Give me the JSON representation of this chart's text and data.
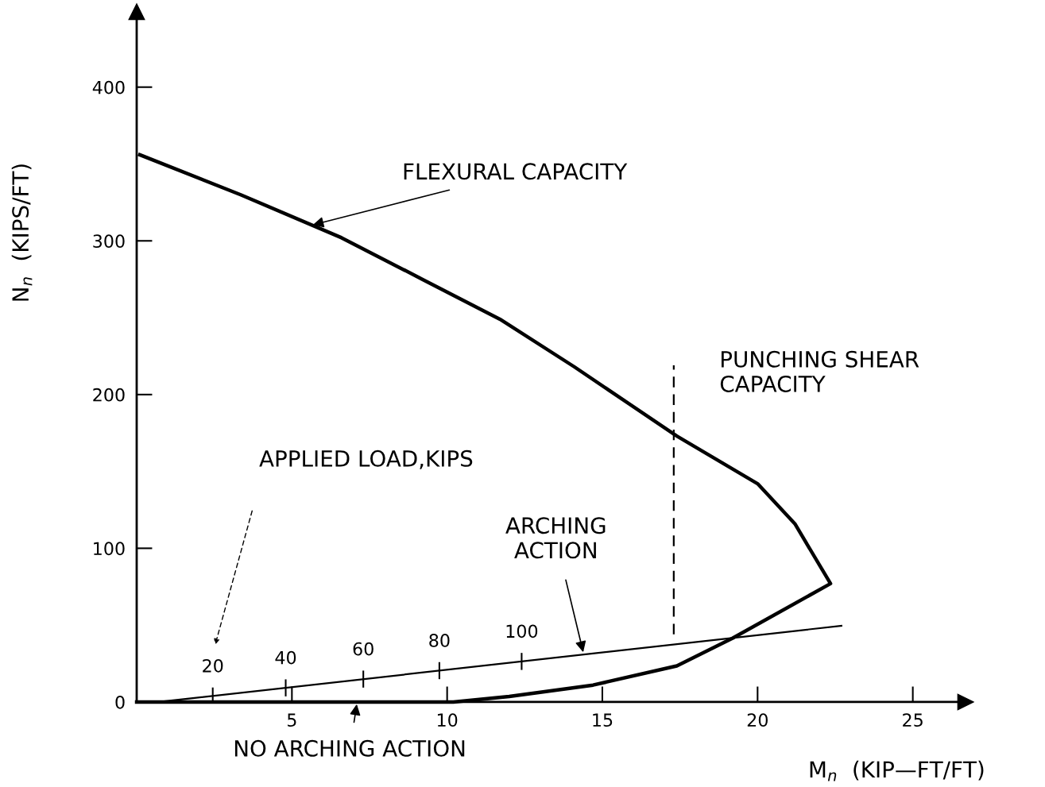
{
  "chart_data": {
    "type": "line",
    "xlabel": "M$_{n}$  (KIP—FT/FT)",
    "ylabel": "N$_{n}$  (KIPS/FT)",
    "xlim": [
      0,
      26.7
    ],
    "ylim": [
      0,
      449
    ],
    "xticks": [
      5,
      10,
      15,
      20,
      25
    ],
    "yticks": [
      0,
      100,
      200,
      300,
      400
    ],
    "grid": false,
    "legend": false,
    "marker": "none",
    "series": [
      {
        "color": "#000000",
        "line_style": "solid",
        "x": [
          0.1,
          3.35,
          6.6,
          9.2,
          11.7,
          14.1,
          17.4,
          20,
          21.2,
          22.35,
          19.2,
          17.4,
          14.7,
          12,
          10.2,
          0
        ],
        "values": [
          356,
          330,
          302,
          275,
          249,
          218,
          173,
          142,
          116,
          77,
          41.6,
          23.5,
          11,
          3.6,
          0,
          0
        ]
      },
      {
        "color": "#000000",
        "line_style": "solid",
        "x": [
          0.7,
          22.7
        ],
        "values": [
          0,
          49.6
        ]
      },
      {
        "color": "#000000",
        "line_style": "dashed",
        "x": [
          17.3,
          17.3
        ],
        "values": [
          44,
          219
        ]
      }
    ],
    "annotations": [
      {
        "text": "FLEXURAL CAPACITY",
        "x": 5.6,
        "y": 310
      },
      "PUNCHING SHEAR\nCAPACITY",
      "APPLIED LOAD,KIPS",
      {
        "text": "ARCHING\nACTION",
        "x": 14.4,
        "y": 31
      },
      {
        "text": "NO ARCHING ACTION",
        "x": 7.1,
        "y": 0
      },
      {
        "text": "20",
        "x": 2.45,
        "y": 3.9
      },
      {
        "text": "40",
        "x": 4.8,
        "y": 9.2
      },
      {
        "text": "60",
        "x": 7.3,
        "y": 14.9
      },
      {
        "text": "80",
        "x": 9.75,
        "y": 20.4
      },
      {
        "text": "100",
        "x": 12.4,
        "y": 26.4
      }
    ]
  }
}
